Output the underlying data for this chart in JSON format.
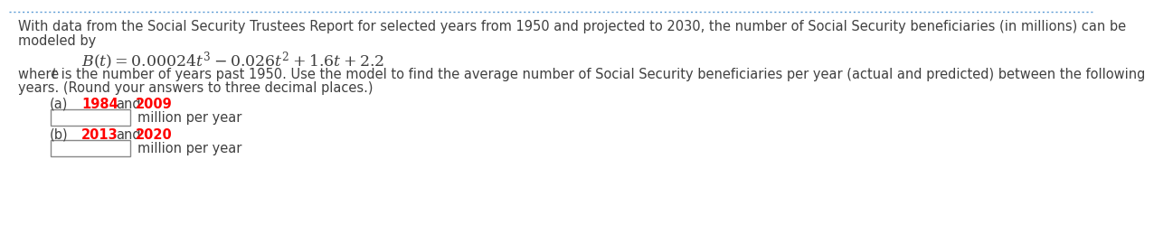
{
  "background_color": "#ffffff",
  "text_color": "#404040",
  "red_color": "#ff0000",
  "border_color": "#5b9bd5",
  "line1": "With data from the Social Security Trustees Report for selected years from 1950 and projected to 2030, the number of Social Security beneficiaries (in millions) can be",
  "line2": "modeled by",
  "line3_where": "where ",
  "line3_t": "t",
  "line3_rest": " is the number of years past 1950. Use the model to find the average number of Social Security beneficiaries per year (actual and predicted) between the following",
  "line4": "years. (Round your answers to three decimal places.)",
  "formula": "$B(t) = 0.00024t^{3} - 0.026t^{2} + 1.6t + 2.2$",
  "part_a_label": "(a)",
  "part_a_year1": "1984",
  "part_a_and": "and",
  "part_a_year2": "2009",
  "part_b_label": "(b)",
  "part_b_year1": "2013",
  "part_b_and": "and",
  "part_b_year2": "2020",
  "million_per_year": "million per year",
  "font_size": 10.5,
  "formula_font_size": 12.5,
  "parts_font_size": 10.5
}
